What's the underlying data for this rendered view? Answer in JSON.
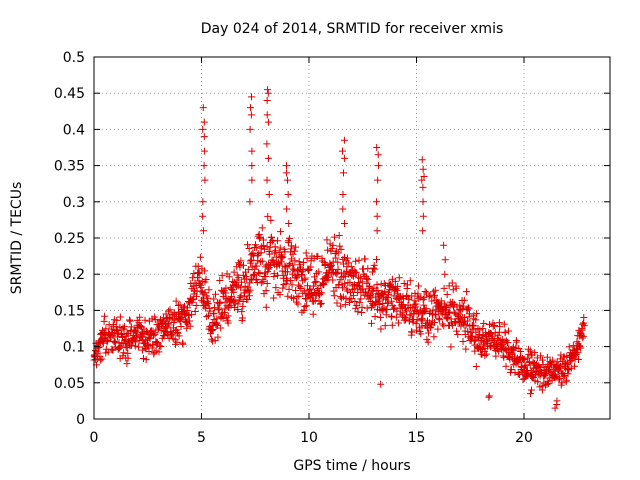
{
  "chart_data": {
    "type": "scatter",
    "title": "Day 024 of 2014, SRMTID for receiver xmis",
    "xlabel": "GPS time / hours",
    "ylabel": "SRMTID / TECUs",
    "xlim": [
      0,
      24
    ],
    "ylim": [
      0,
      0.5
    ],
    "grid": true,
    "marker": "+",
    "color": "#e00000",
    "x_ticks": [
      0,
      5,
      10,
      15,
      20
    ],
    "x_tick_labels": [
      "0",
      "5",
      "10",
      "15",
      "20"
    ],
    "y_ticks": [
      0,
      0.05,
      0.1,
      0.15,
      0.2,
      0.25,
      0.3,
      0.35,
      0.4,
      0.45,
      0.5
    ],
    "y_tick_labels": [
      "0",
      "0.05",
      "0.1",
      "0.15",
      "0.2",
      "0.25",
      "0.3",
      "0.35",
      "0.4",
      "0.45",
      "0.5"
    ],
    "trend": {
      "x": [
        0,
        0.5,
        1,
        1.5,
        2,
        2.5,
        3,
        3.5,
        4,
        4.5,
        5,
        5.5,
        6,
        6.5,
        7,
        7.5,
        8,
        8.5,
        9,
        9.5,
        10,
        10.5,
        11,
        11.5,
        12,
        12.5,
        13,
        13.5,
        14,
        14.5,
        15,
        15.5,
        16,
        16.5,
        17,
        17.5,
        18,
        18.5,
        19,
        19.5,
        20,
        20.5,
        21,
        21.5,
        22,
        22.5,
        22.8
      ],
      "center": [
        0.08,
        0.12,
        0.11,
        0.11,
        0.12,
        0.11,
        0.12,
        0.13,
        0.13,
        0.16,
        0.2,
        0.13,
        0.16,
        0.17,
        0.19,
        0.22,
        0.23,
        0.21,
        0.21,
        0.19,
        0.19,
        0.18,
        0.21,
        0.2,
        0.19,
        0.18,
        0.17,
        0.16,
        0.17,
        0.15,
        0.15,
        0.14,
        0.15,
        0.14,
        0.15,
        0.12,
        0.11,
        0.11,
        0.1,
        0.09,
        0.07,
        0.07,
        0.06,
        0.07,
        0.07,
        0.1,
        0.13
      ],
      "spread": [
        0.04,
        0.04,
        0.04,
        0.04,
        0.04,
        0.04,
        0.04,
        0.04,
        0.05,
        0.05,
        0.06,
        0.05,
        0.05,
        0.06,
        0.07,
        0.08,
        0.08,
        0.07,
        0.07,
        0.06,
        0.06,
        0.06,
        0.07,
        0.06,
        0.06,
        0.06,
        0.06,
        0.05,
        0.05,
        0.05,
        0.05,
        0.05,
        0.05,
        0.05,
        0.05,
        0.05,
        0.04,
        0.04,
        0.04,
        0.04,
        0.03,
        0.03,
        0.03,
        0.03,
        0.03,
        0.03,
        0.02
      ]
    },
    "spikes": [
      {
        "x": 5.1,
        "values": [
          0.43,
          0.41,
          0.4,
          0.39,
          0.37,
          0.35,
          0.33,
          0.3,
          0.28,
          0.26
        ]
      },
      {
        "x": 7.3,
        "values": [
          0.445,
          0.43,
          0.42,
          0.4,
          0.37,
          0.35,
          0.33,
          0.3
        ]
      },
      {
        "x": 8.1,
        "values": [
          0.455,
          0.45,
          0.44,
          0.42,
          0.41,
          0.38,
          0.36,
          0.33,
          0.31
        ]
      },
      {
        "x": 9.0,
        "values": [
          0.35,
          0.34,
          0.33,
          0.31,
          0.29,
          0.27
        ]
      },
      {
        "x": 11.6,
        "values": [
          0.385,
          0.37,
          0.36,
          0.34,
          0.31,
          0.29,
          0.27
        ]
      },
      {
        "x": 13.2,
        "values": [
          0.375,
          0.365,
          0.35,
          0.33,
          0.3,
          0.28,
          0.26
        ]
      },
      {
        "x": 15.3,
        "values": [
          0.358,
          0.345,
          0.335,
          0.33,
          0.32,
          0.3,
          0.28,
          0.26
        ]
      },
      {
        "x": 16.3,
        "values": [
          0.24,
          0.22,
          0.2
        ]
      },
      {
        "x": 13.3,
        "values": [
          0.048
        ]
      },
      {
        "x": 18.4,
        "values": [
          0.03,
          0.032
        ]
      },
      {
        "x": 20.3,
        "values": [
          0.035,
          0.04
        ]
      },
      {
        "x": 21.5,
        "values": [
          0.015,
          0.02,
          0.025
        ]
      }
    ]
  }
}
